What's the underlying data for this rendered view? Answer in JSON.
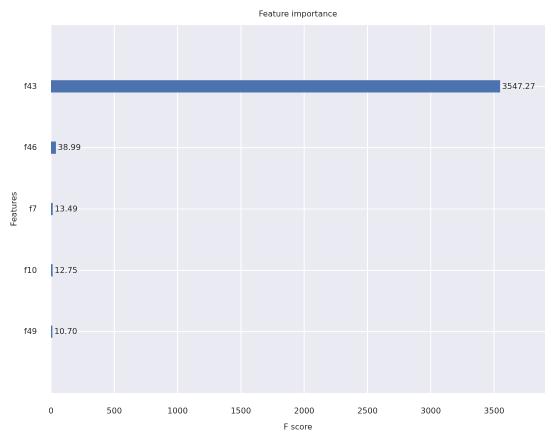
{
  "chart_data": {
    "type": "barh",
    "title": "Feature importance",
    "x_label": "F score",
    "y_label": "Features",
    "categories": [
      "f43",
      "f46",
      "f7",
      "f10",
      "f49"
    ],
    "values": [
      3547.27,
      38.99,
      13.49,
      12.75,
      10.7
    ],
    "value_labels": [
      "3547.27",
      "38.99",
      "13.49",
      "12.75",
      "10.70"
    ],
    "color": "#4c72b0",
    "xlim": [
      0,
      3902
    ],
    "xticks": [
      0,
      500,
      1000,
      1500,
      2000,
      2500,
      3000,
      3500
    ],
    "grid": true
  }
}
